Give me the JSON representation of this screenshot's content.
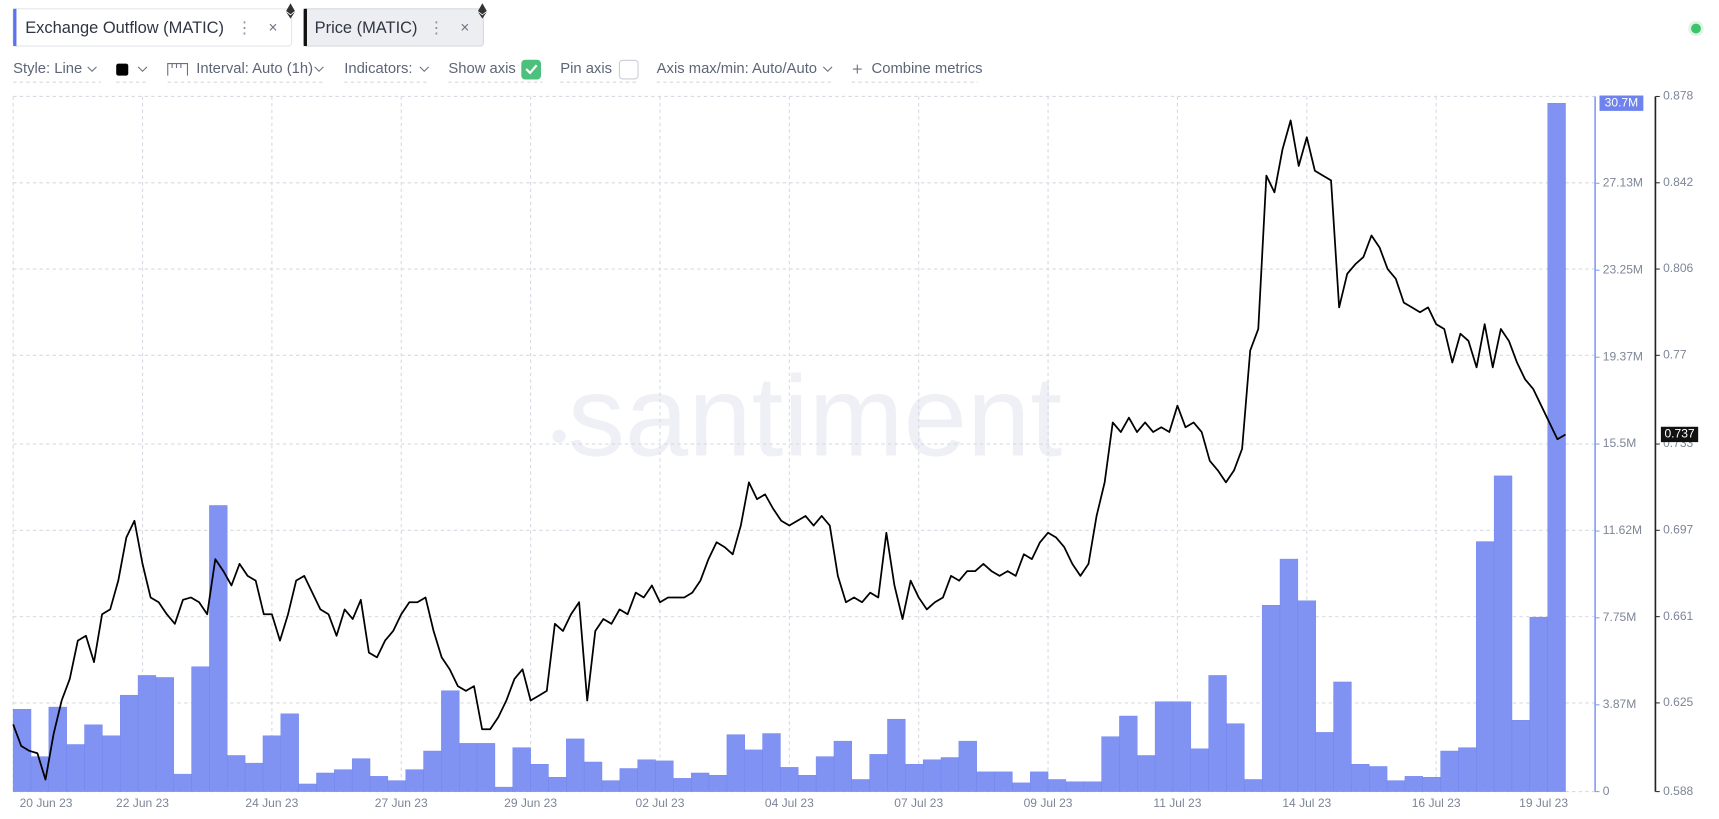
{
  "toolbar": {
    "style": "Style: Line",
    "interval": "Interval: Auto (1h)",
    "indicators": "Indicators:",
    "show_axis": "Show axis",
    "show_axis_checked": true,
    "pin_axis": "Pin axis",
    "pin_axis_checked": false,
    "axis_minmax": "Axis max/min: Auto/Auto",
    "combine": "Combine metrics"
  },
  "chart_data": {
    "type": "combo",
    "watermark": "santiment",
    "x_labels": [
      "20 Jun 23",
      "22 Jun 23",
      "24 Jun 23",
      "27 Jun 23",
      "29 Jun 23",
      "02 Jul 23",
      "04 Jul 23",
      "07 Jul 23",
      "09 Jul 23",
      "11 Jul 23",
      "14 Jul 23",
      "16 Jul 23",
      "19 Jul 23"
    ],
    "ylim": [
      0,
      31000000
    ],
    "yticks": [
      0,
      {
        "value": 3870000,
        "label": "3.87M"
      },
      {
        "value": 7750000,
        "label": "7.75M"
      },
      {
        "value": 11620000,
        "label": "11.62M"
      },
      {
        "value": 15500000,
        "label": "15.5M"
      },
      {
        "value": 19370000,
        "label": "19.37M"
      },
      {
        "value": 23250000,
        "label": "23.25M"
      },
      {
        "value": 27130000,
        "label": "27.13M"
      }
    ],
    "y2lim": [
      0.588,
      0.878
    ],
    "y2ticks": [
      0.588,
      0.625,
      0.661,
      0.697,
      0.733,
      0.77,
      0.806,
      0.842,
      0.878
    ],
    "grid": true,
    "series": [
      {
        "name": "Exchange Outflow (MATIC)",
        "type": "bar",
        "axis": "y",
        "color": "#8093f3",
        "current_label": "30.7M",
        "values": [
          3670000,
          1560000,
          3770000,
          2100000,
          2980000,
          2490000,
          4300000,
          5180000,
          5090000,
          780000,
          5570000,
          12760000,
          1610000,
          1270000,
          2490000,
          3470000,
          340000,
          830000,
          980000,
          1470000,
          680000,
          490000,
          980000,
          1810000,
          4500000,
          2150000,
          2150000,
          200000,
          1960000,
          1220000,
          640000,
          2350000,
          1320000,
          490000,
          1030000,
          1420000,
          1370000,
          590000,
          830000,
          730000,
          2540000,
          1860000,
          2590000,
          1080000,
          730000,
          1560000,
          2250000,
          540000,
          1660000,
          3230000,
          1220000,
          1420000,
          1520000,
          2250000,
          880000,
          880000,
          390000,
          880000,
          540000,
          440000,
          440000,
          2450000,
          3370000,
          1610000,
          4010000,
          4010000,
          1910000,
          5180000,
          3030000,
          540000,
          8310000,
          10370000,
          8510000,
          2640000,
          4890000,
          1220000,
          1120000,
          490000,
          680000,
          640000,
          1810000,
          1960000,
          11150000,
          14080000,
          3180000,
          7780000,
          30700000
        ]
      },
      {
        "name": "Price (MATIC)",
        "type": "line",
        "axis": "y2",
        "color": "#000000",
        "values": [
          0.616,
          0.607,
          0.605,
          0.604,
          0.593,
          0.612,
          0.626,
          0.635,
          0.651,
          0.653,
          0.642,
          0.662,
          0.664,
          0.676,
          0.694,
          0.701,
          0.683,
          0.669,
          0.667,
          0.662,
          0.658,
          0.668,
          0.669,
          0.667,
          0.662,
          0.685,
          0.68,
          0.674,
          0.683,
          0.678,
          0.676,
          0.662,
          0.662,
          0.651,
          0.662,
          0.676,
          0.678,
          0.671,
          0.664,
          0.662,
          0.653,
          0.664,
          0.66,
          0.668,
          0.646,
          0.644,
          0.651,
          0.655,
          0.662,
          0.667,
          0.667,
          0.669,
          0.655,
          0.644,
          0.639,
          0.632,
          0.63,
          0.632,
          0.614,
          0.614,
          0.619,
          0.626,
          0.635,
          0.639,
          0.626,
          0.628,
          0.63,
          0.658,
          0.655,
          0.662,
          0.667,
          0.626,
          0.655,
          0.66,
          0.658,
          0.664,
          0.662,
          0.671,
          0.669,
          0.674,
          0.667,
          0.669,
          0.669,
          0.669,
          0.671,
          0.676,
          0.685,
          0.692,
          0.69,
          0.687,
          0.699,
          0.717,
          0.71,
          0.712,
          0.706,
          0.701,
          0.699,
          0.701,
          0.703,
          0.699,
          0.703,
          0.699,
          0.678,
          0.667,
          0.669,
          0.667,
          0.671,
          0.669,
          0.696,
          0.674,
          0.66,
          0.676,
          0.669,
          0.664,
          0.667,
          0.669,
          0.678,
          0.676,
          0.68,
          0.68,
          0.683,
          0.68,
          0.678,
          0.68,
          0.678,
          0.687,
          0.685,
          0.692,
          0.696,
          0.694,
          0.69,
          0.683,
          0.678,
          0.683,
          0.703,
          0.717,
          0.742,
          0.738,
          0.744,
          0.738,
          0.742,
          0.738,
          0.74,
          0.738,
          0.749,
          0.74,
          0.742,
          0.738,
          0.726,
          0.722,
          0.717,
          0.722,
          0.731,
          0.772,
          0.781,
          0.845,
          0.838,
          0.856,
          0.868,
          0.849,
          0.861,
          0.847,
          0.845,
          0.843,
          0.79,
          0.804,
          0.808,
          0.811,
          0.82,
          0.815,
          0.806,
          0.802,
          0.792,
          0.79,
          0.788,
          0.79,
          0.783,
          0.781,
          0.767,
          0.779,
          0.776,
          0.765,
          0.783,
          0.765,
          0.781,
          0.776,
          0.767,
          0.76,
          0.756,
          0.749,
          0.742,
          0.735,
          0.737
        ]
      }
    ]
  }
}
